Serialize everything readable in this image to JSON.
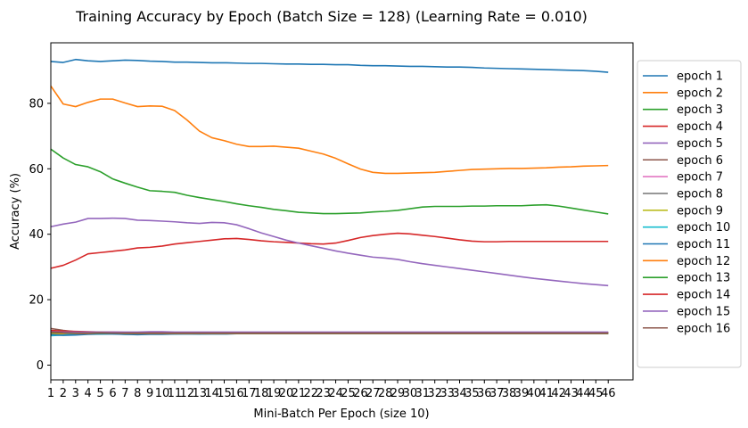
{
  "chart_data": {
    "type": "line",
    "title": "Training Accuracy by Epoch (Batch Size = 128) (Learning Rate = 0.010)",
    "xlabel": "Mini-Batch Per Epoch (size 10)",
    "ylabel": "Accuracy (%)",
    "xlim": [
      1,
      48
    ],
    "ylim": [
      -4.5,
      98.5
    ],
    "yticks": [
      0,
      20,
      40,
      60,
      80
    ],
    "xticks": [
      1,
      2,
      3,
      4,
      5,
      6,
      7,
      8,
      9,
      10,
      11,
      12,
      13,
      14,
      15,
      16,
      17,
      18,
      19,
      20,
      21,
      22,
      23,
      24,
      25,
      26,
      27,
      28,
      29,
      30,
      31,
      32,
      33,
      34,
      35,
      36,
      37,
      38,
      39,
      40,
      41,
      42,
      43,
      44,
      45,
      46
    ],
    "legend_position": "outside-right",
    "grid": false,
    "x": [
      1,
      2,
      3,
      4,
      5,
      6,
      7,
      8,
      9,
      10,
      11,
      12,
      13,
      14,
      15,
      16,
      17,
      18,
      19,
      20,
      21,
      22,
      23,
      24,
      25,
      26,
      27,
      28,
      29,
      30,
      31,
      32,
      33,
      34,
      35,
      36,
      37,
      38,
      39,
      40,
      41,
      42,
      43,
      44,
      45,
      46
    ],
    "series": [
      {
        "name": "epoch 1",
        "color": "#1f77b4",
        "values": [
          92.8,
          92.5,
          93.4,
          93.0,
          92.8,
          93.0,
          93.2,
          93.1,
          92.9,
          92.8,
          92.6,
          92.6,
          92.5,
          92.4,
          92.4,
          92.3,
          92.2,
          92.2,
          92.1,
          92.0,
          92.0,
          91.9,
          91.9,
          91.8,
          91.8,
          91.6,
          91.5,
          91.5,
          91.4,
          91.3,
          91.3,
          91.2,
          91.1,
          91.1,
          91.0,
          90.8,
          90.7,
          90.6,
          90.5,
          90.4,
          90.3,
          90.2,
          90.1,
          90.0,
          89.8,
          89.5
        ]
      },
      {
        "name": "epoch 2",
        "color": "#ff7f0e",
        "values": [
          85.3,
          79.8,
          79.0,
          80.3,
          81.3,
          81.3,
          80.1,
          79.0,
          79.2,
          79.1,
          77.8,
          74.9,
          71.5,
          69.5,
          68.6,
          67.5,
          66.8,
          66.8,
          66.9,
          66.6,
          66.3,
          65.4,
          64.5,
          63.2,
          61.5,
          59.9,
          58.9,
          58.6,
          58.6,
          58.7,
          58.8,
          58.9,
          59.2,
          59.5,
          59.8,
          59.9,
          60.0,
          60.1,
          60.1,
          60.2,
          60.3,
          60.5,
          60.6,
          60.8,
          60.9,
          61.0
        ]
      },
      {
        "name": "epoch 3",
        "color": "#2ca02c",
        "values": [
          66.0,
          63.3,
          61.3,
          60.6,
          59.1,
          56.9,
          55.6,
          54.4,
          53.3,
          53.1,
          52.8,
          51.9,
          51.2,
          50.6,
          50.0,
          49.3,
          48.7,
          48.2,
          47.6,
          47.2,
          46.7,
          46.5,
          46.3,
          46.3,
          46.4,
          46.5,
          46.8,
          47.0,
          47.3,
          47.8,
          48.3,
          48.5,
          48.5,
          48.5,
          48.6,
          48.6,
          48.7,
          48.7,
          48.7,
          48.9,
          49.0,
          48.6,
          48.0,
          47.4,
          46.8,
          46.2
        ]
      },
      {
        "name": "epoch 4",
        "color": "#d62728",
        "values": [
          29.6,
          30.5,
          32.1,
          34.0,
          34.4,
          34.8,
          35.2,
          35.8,
          36.0,
          36.4,
          37.0,
          37.4,
          37.8,
          38.2,
          38.6,
          38.7,
          38.4,
          38.0,
          37.7,
          37.5,
          37.3,
          37.1,
          37.0,
          37.3,
          38.1,
          39.0,
          39.6,
          40.0,
          40.3,
          40.1,
          39.7,
          39.3,
          38.8,
          38.3,
          37.9,
          37.7,
          37.7,
          37.8,
          37.8,
          37.8,
          37.8,
          37.8,
          37.8,
          37.8,
          37.8,
          37.8
        ]
      },
      {
        "name": "epoch 5",
        "color": "#9467bd",
        "values": [
          42.3,
          43.1,
          43.7,
          44.8,
          44.8,
          44.9,
          44.8,
          44.3,
          44.2,
          44.0,
          43.8,
          43.5,
          43.3,
          43.6,
          43.5,
          42.9,
          41.7,
          40.4,
          39.3,
          38.2,
          37.3,
          36.5,
          35.7,
          34.9,
          34.2,
          33.6,
          33.0,
          32.7,
          32.3,
          31.6,
          31.0,
          30.5,
          30.0,
          29.5,
          29.0,
          28.5,
          28.0,
          27.5,
          27.0,
          26.5,
          26.1,
          25.7,
          25.3,
          24.9,
          24.6,
          24.3
        ]
      },
      {
        "name": "epoch 6",
        "color": "#8c564b",
        "values": [
          11.2,
          10.6,
          10.2,
          10.0,
          10.0,
          9.9,
          9.8,
          9.8,
          9.8,
          9.9,
          9.9,
          9.9,
          9.9,
          9.9,
          10.0,
          10.0,
          10.0,
          10.0,
          10.0,
          10.0,
          10.0,
          10.0,
          10.0,
          10.0,
          10.0,
          10.0,
          10.0,
          10.0,
          10.0,
          10.0,
          10.0,
          10.0,
          10.0,
          10.0,
          10.0,
          10.0,
          10.0,
          10.0,
          10.0,
          10.0,
          10.0,
          10.0,
          10.0,
          10.0,
          10.0,
          10.0
        ]
      },
      {
        "name": "epoch 7",
        "color": "#e377c2",
        "values": [
          10.4,
          10.0,
          9.8,
          9.9,
          9.8,
          9.8,
          9.9,
          9.8,
          9.9,
          9.8,
          9.9,
          9.8,
          9.9,
          9.8,
          9.9,
          9.9,
          9.9,
          9.9,
          9.9,
          9.9,
          9.9,
          9.9,
          9.9,
          9.9,
          9.9,
          9.9,
          9.9,
          9.9,
          9.9,
          9.9,
          9.9,
          9.9,
          9.9,
          9.9,
          9.9,
          9.9,
          9.9,
          9.9,
          9.9,
          9.9,
          9.9,
          9.9,
          9.9,
          9.9,
          9.9,
          9.9
        ]
      },
      {
        "name": "epoch 8",
        "color": "#7f7f7f",
        "values": [
          9.9,
          9.8,
          9.7,
          9.8,
          9.7,
          9.7,
          9.8,
          9.7,
          9.8,
          9.7,
          9.7,
          9.7,
          9.7,
          9.7,
          9.7,
          9.7,
          9.7,
          9.8,
          9.7,
          9.7,
          9.8,
          9.8,
          9.8,
          9.7,
          9.7,
          9.7,
          9.7,
          9.7,
          9.8,
          9.8,
          9.7,
          9.7,
          9.7,
          9.7,
          9.7,
          9.7,
          9.7,
          9.7,
          9.7,
          9.7,
          9.8,
          9.8,
          9.8,
          9.8,
          9.8,
          9.8
        ]
      },
      {
        "name": "epoch 9",
        "color": "#bcbd22",
        "values": [
          9.6,
          9.6,
          9.6,
          9.7,
          9.6,
          9.6,
          9.6,
          9.6,
          9.6,
          9.6,
          9.6,
          9.6,
          9.6,
          9.6,
          9.6,
          9.6,
          9.7,
          9.6,
          9.6,
          9.6,
          9.6,
          9.6,
          9.6,
          9.6,
          9.6,
          9.6,
          9.6,
          9.6,
          9.6,
          9.6,
          9.6,
          9.6,
          9.6,
          9.6,
          9.6,
          9.6,
          9.6,
          9.6,
          9.6,
          9.6,
          9.6,
          9.6,
          9.6,
          9.6,
          9.6,
          9.6
        ]
      },
      {
        "name": "epoch 10",
        "color": "#17becf",
        "values": [
          9.0,
          9.2,
          9.5,
          9.6,
          9.5,
          9.6,
          9.4,
          9.5,
          9.6,
          9.5,
          9.5,
          9.6,
          9.5,
          9.6,
          9.6,
          9.6,
          9.6,
          9.6,
          9.6,
          9.6,
          9.6,
          9.6,
          9.6,
          9.6,
          9.6,
          9.6,
          9.6,
          9.6,
          9.6,
          9.6,
          9.6,
          9.6,
          9.6,
          9.6,
          9.6,
          9.6,
          9.6,
          9.6,
          9.6,
          9.6,
          9.6,
          9.6,
          9.6,
          9.6,
          9.6,
          9.6
        ]
      },
      {
        "name": "epoch 11",
        "color": "#1f77b4",
        "values": [
          9.3,
          9.1,
          9.2,
          9.4,
          9.5,
          9.5,
          9.4,
          9.3,
          9.4,
          9.4,
          9.5,
          9.5,
          9.5,
          9.5,
          9.5,
          9.6,
          9.6,
          9.6,
          9.6,
          9.6,
          9.6,
          9.6,
          9.6,
          9.6,
          9.6,
          9.6,
          9.6,
          9.6,
          9.6,
          9.6,
          9.6,
          9.6,
          9.6,
          9.6,
          9.6,
          9.6,
          9.6,
          9.6,
          9.6,
          9.6,
          9.6,
          9.6,
          9.6,
          9.6,
          9.6,
          9.6
        ]
      },
      {
        "name": "epoch 12",
        "color": "#ff7f0e",
        "values": [
          9.9,
          9.8,
          9.7,
          9.7,
          9.8,
          9.8,
          9.7,
          9.7,
          9.7,
          9.7,
          9.7,
          9.7,
          9.7,
          9.7,
          9.7,
          9.7,
          9.7,
          9.7,
          9.7,
          9.7,
          9.7,
          9.7,
          9.7,
          9.7,
          9.7,
          9.7,
          9.7,
          9.7,
          9.7,
          9.7,
          9.7,
          9.7,
          9.7,
          9.7,
          9.7,
          9.7,
          9.7,
          9.7,
          9.7,
          9.7,
          9.7,
          9.7,
          9.7,
          9.7,
          9.7,
          9.7
        ]
      },
      {
        "name": "epoch 13",
        "color": "#2ca02c",
        "values": [
          10.0,
          9.9,
          9.8,
          9.8,
          9.8,
          9.8,
          9.8,
          9.8,
          9.8,
          9.8,
          9.8,
          9.8,
          9.8,
          9.8,
          9.8,
          9.8,
          9.8,
          9.8,
          9.8,
          9.8,
          9.8,
          9.8,
          9.8,
          9.8,
          9.8,
          9.8,
          9.8,
          9.8,
          9.8,
          9.8,
          9.8,
          9.8,
          9.8,
          9.8,
          9.8,
          9.8,
          9.8,
          9.8,
          9.8,
          9.8,
          9.8,
          9.8,
          9.8,
          9.8,
          9.8,
          9.8
        ]
      },
      {
        "name": "epoch 14",
        "color": "#d62728",
        "values": [
          10.6,
          10.4,
          10.3,
          10.2,
          10.1,
          10.1,
          10.0,
          10.0,
          10.0,
          10.0,
          10.0,
          10.0,
          10.0,
          10.0,
          10.0,
          10.0,
          10.0,
          10.0,
          10.0,
          10.0,
          10.0,
          10.0,
          10.0,
          10.0,
          10.0,
          10.0,
          10.0,
          10.0,
          10.0,
          10.0,
          10.0,
          10.0,
          10.0,
          10.0,
          10.0,
          10.0,
          10.0,
          10.0,
          10.0,
          10.0,
          10.0,
          10.0,
          10.0,
          10.0,
          10.0,
          10.0
        ]
      },
      {
        "name": "epoch 15",
        "color": "#9467bd",
        "values": [
          10.2,
          10.1,
          10.1,
          10.1,
          10.1,
          10.1,
          10.1,
          10.1,
          10.2,
          10.2,
          10.1,
          10.1,
          10.1,
          10.1,
          10.1,
          10.1,
          10.1,
          10.1,
          10.1,
          10.1,
          10.1,
          10.1,
          10.1,
          10.1,
          10.1,
          10.1,
          10.1,
          10.1,
          10.1,
          10.1,
          10.1,
          10.1,
          10.1,
          10.1,
          10.1,
          10.1,
          10.1,
          10.1,
          10.1,
          10.1,
          10.1,
          10.1,
          10.1,
          10.1,
          10.1,
          10.1
        ]
      },
      {
        "name": "epoch 16",
        "color": "#8c564b",
        "values": [
          10.1,
          9.9,
          9.8,
          9.8,
          9.9,
          9.8,
          9.8,
          9.8,
          9.8,
          9.8,
          9.8,
          9.8,
          9.8,
          9.8,
          9.8,
          9.8,
          9.8,
          9.8,
          9.8,
          9.8,
          9.8,
          9.8,
          9.8,
          9.8,
          9.8,
          9.8,
          9.8,
          9.8,
          9.8,
          9.8,
          9.8,
          9.8,
          9.8,
          9.8,
          9.8,
          9.8,
          9.8,
          9.8,
          9.8,
          9.8,
          9.8,
          9.8,
          9.8,
          9.8,
          9.8,
          9.8
        ]
      }
    ]
  }
}
